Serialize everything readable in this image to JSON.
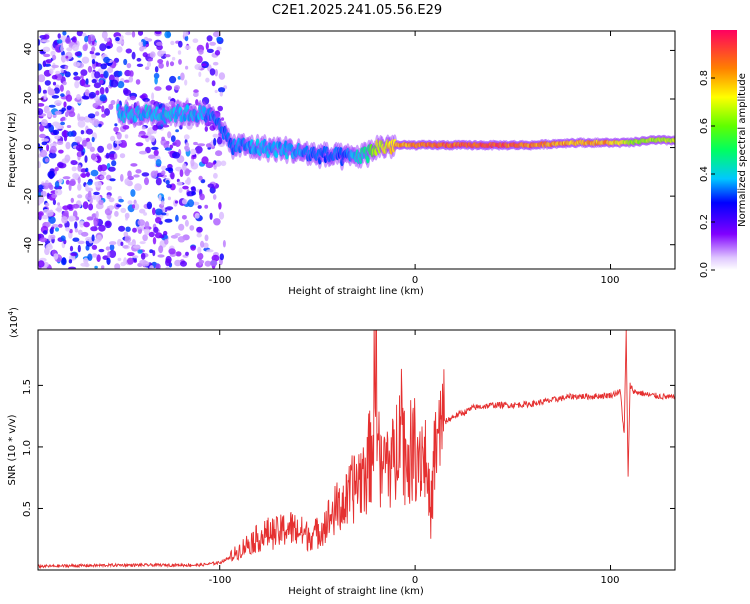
{
  "title": "C2E1.2025.241.05.56.E29",
  "top_panel": {
    "xlabel": "Height of straight line (km)",
    "ylabel": "Frequency (Hz)",
    "xticks": [
      "-100",
      "0",
      "100"
    ],
    "yticks": [
      "40",
      "20",
      "0",
      "-20",
      "-40"
    ]
  },
  "colorbar": {
    "label": "Normalized spectral amplitude",
    "ticks": [
      "0.0",
      "0.2",
      "0.4",
      "0.6",
      "0.8"
    ]
  },
  "bottom_panel": {
    "xlabel": "Height of straight line (km)",
    "ylabel": "SNR (10 * v/v)",
    "scale_base": "(x10",
    "scale_exp": "4",
    "scale_close": ")",
    "xticks": [
      "-100",
      "0",
      "100"
    ],
    "yticks": [
      "1.5",
      "1.0",
      "0.5"
    ]
  },
  "chart_data": [
    {
      "type": "heatmap",
      "title": "C2E1.2025.241.05.56.E29",
      "xlabel": "Height of straight line (km)",
      "ylabel": "Frequency (Hz)",
      "xlim": [
        -193,
        133
      ],
      "ylim": [
        -50,
        48
      ],
      "xticks": [
        -100,
        0,
        100
      ],
      "yticks": [
        -40,
        -20,
        0,
        20,
        40
      ],
      "colorbar": {
        "label": "Normalized spectral amplitude",
        "range": [
          0,
          1
        ],
        "ticks": [
          0,
          0.2,
          0.4,
          0.6,
          0.8
        ]
      },
      "ridge": {
        "x": [
          -150,
          -130,
          -110,
          -100,
          -95,
          -80,
          -65,
          -50,
          -35,
          -25,
          -20,
          -10,
          0,
          20,
          40,
          60,
          80,
          100,
          110,
          120,
          133
        ],
        "frequency": [
          14,
          14,
          14,
          11,
          1,
          0,
          -1,
          -3,
          -4,
          -3,
          0,
          1,
          1,
          1,
          1,
          1,
          2,
          2,
          2,
          3,
          3
        ],
        "amplitude": [
          0.4,
          0.42,
          0.4,
          0.35,
          0.35,
          0.4,
          0.4,
          0.35,
          0.35,
          0.5,
          0.7,
          0.85,
          0.9,
          0.95,
          0.95,
          0.9,
          0.85,
          0.85,
          0.7,
          0.7,
          0.7
        ]
      },
      "noise_region_x": [
        -193,
        -97
      ]
    },
    {
      "type": "line",
      "xlabel": "Height of straight line (km)",
      "ylabel": "SNR (10 * v/v)",
      "y_scale": "x10^4",
      "xlim": [
        -193,
        133
      ],
      "ylim": [
        0,
        1.95
      ],
      "xticks": [
        -100,
        0,
        100
      ],
      "yticks": [
        0.5,
        1.0,
        1.5
      ],
      "series": [
        {
          "name": "SNR",
          "color": "#e53030",
          "x": [
            -193,
            -150,
            -110,
            -100,
            -95,
            -90,
            -85,
            -80,
            -75,
            -70,
            -65,
            -60,
            -55,
            -50,
            -45,
            -40,
            -35,
            -30,
            -25,
            -22,
            -20,
            -18,
            -15,
            -10,
            -8,
            -5,
            0,
            5,
            8,
            10,
            13,
            15,
            20,
            25,
            30,
            40,
            50,
            60,
            70,
            80,
            90,
            100,
            105,
            107,
            108,
            109,
            110,
            112,
            115,
            120,
            133
          ],
          "values": [
            0.03,
            0.04,
            0.04,
            0.06,
            0.1,
            0.16,
            0.22,
            0.26,
            0.3,
            0.3,
            0.35,
            0.32,
            0.28,
            0.3,
            0.4,
            0.5,
            0.55,
            0.72,
            0.8,
            1.0,
            1.82,
            0.75,
            0.9,
            0.85,
            1.5,
            0.9,
            1.0,
            0.95,
            0.45,
            0.95,
            1.1,
            1.2,
            1.25,
            1.28,
            1.32,
            1.34,
            1.34,
            1.35,
            1.38,
            1.41,
            1.41,
            1.42,
            1.45,
            1.1,
            1.95,
            0.75,
            1.5,
            1.45,
            1.44,
            1.42,
            1.4
          ]
        }
      ]
    }
  ]
}
